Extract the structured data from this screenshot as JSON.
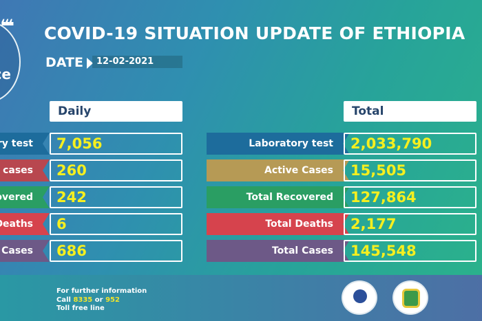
{
  "title": "COVID-19 SITUATION UPDATE OF ETHIOPIA",
  "date_label": "DATE",
  "date": "12-02-2021",
  "badge_text": "ce",
  "daily": {
    "header": "Daily",
    "rows": [
      {
        "label": "ry test",
        "value": "7,056",
        "color": "#1d6c9c"
      },
      {
        "label": "e cases",
        "value": "260",
        "color": "#b8474f"
      },
      {
        "label": "overed",
        "value": "242",
        "color": "#2a9e63"
      },
      {
        "label": "Deaths",
        "value": "6",
        "color": "#d6434d"
      },
      {
        "label": "v Cases",
        "value": "686",
        "color": "#6d5987"
      }
    ]
  },
  "total": {
    "header": "Total",
    "rows": [
      {
        "label": "Laboratory test",
        "value": "2,033,790",
        "color": "#1d6c9c"
      },
      {
        "label": "Active Cases",
        "value": "15,505",
        "color": "#b69a55"
      },
      {
        "label": "Total Recovered",
        "value": "127,864",
        "color": "#2a9e63"
      },
      {
        "label": "Total Deaths",
        "value": "2,177",
        "color": "#d6434d"
      },
      {
        "label": "Total Cases",
        "value": "145,548",
        "color": "#6d5987"
      }
    ]
  },
  "footer": {
    "line1": "For further information",
    "call": "Call",
    "num1": "8335",
    "or": "or",
    "num2": "952",
    "line3": "Toll free line"
  }
}
